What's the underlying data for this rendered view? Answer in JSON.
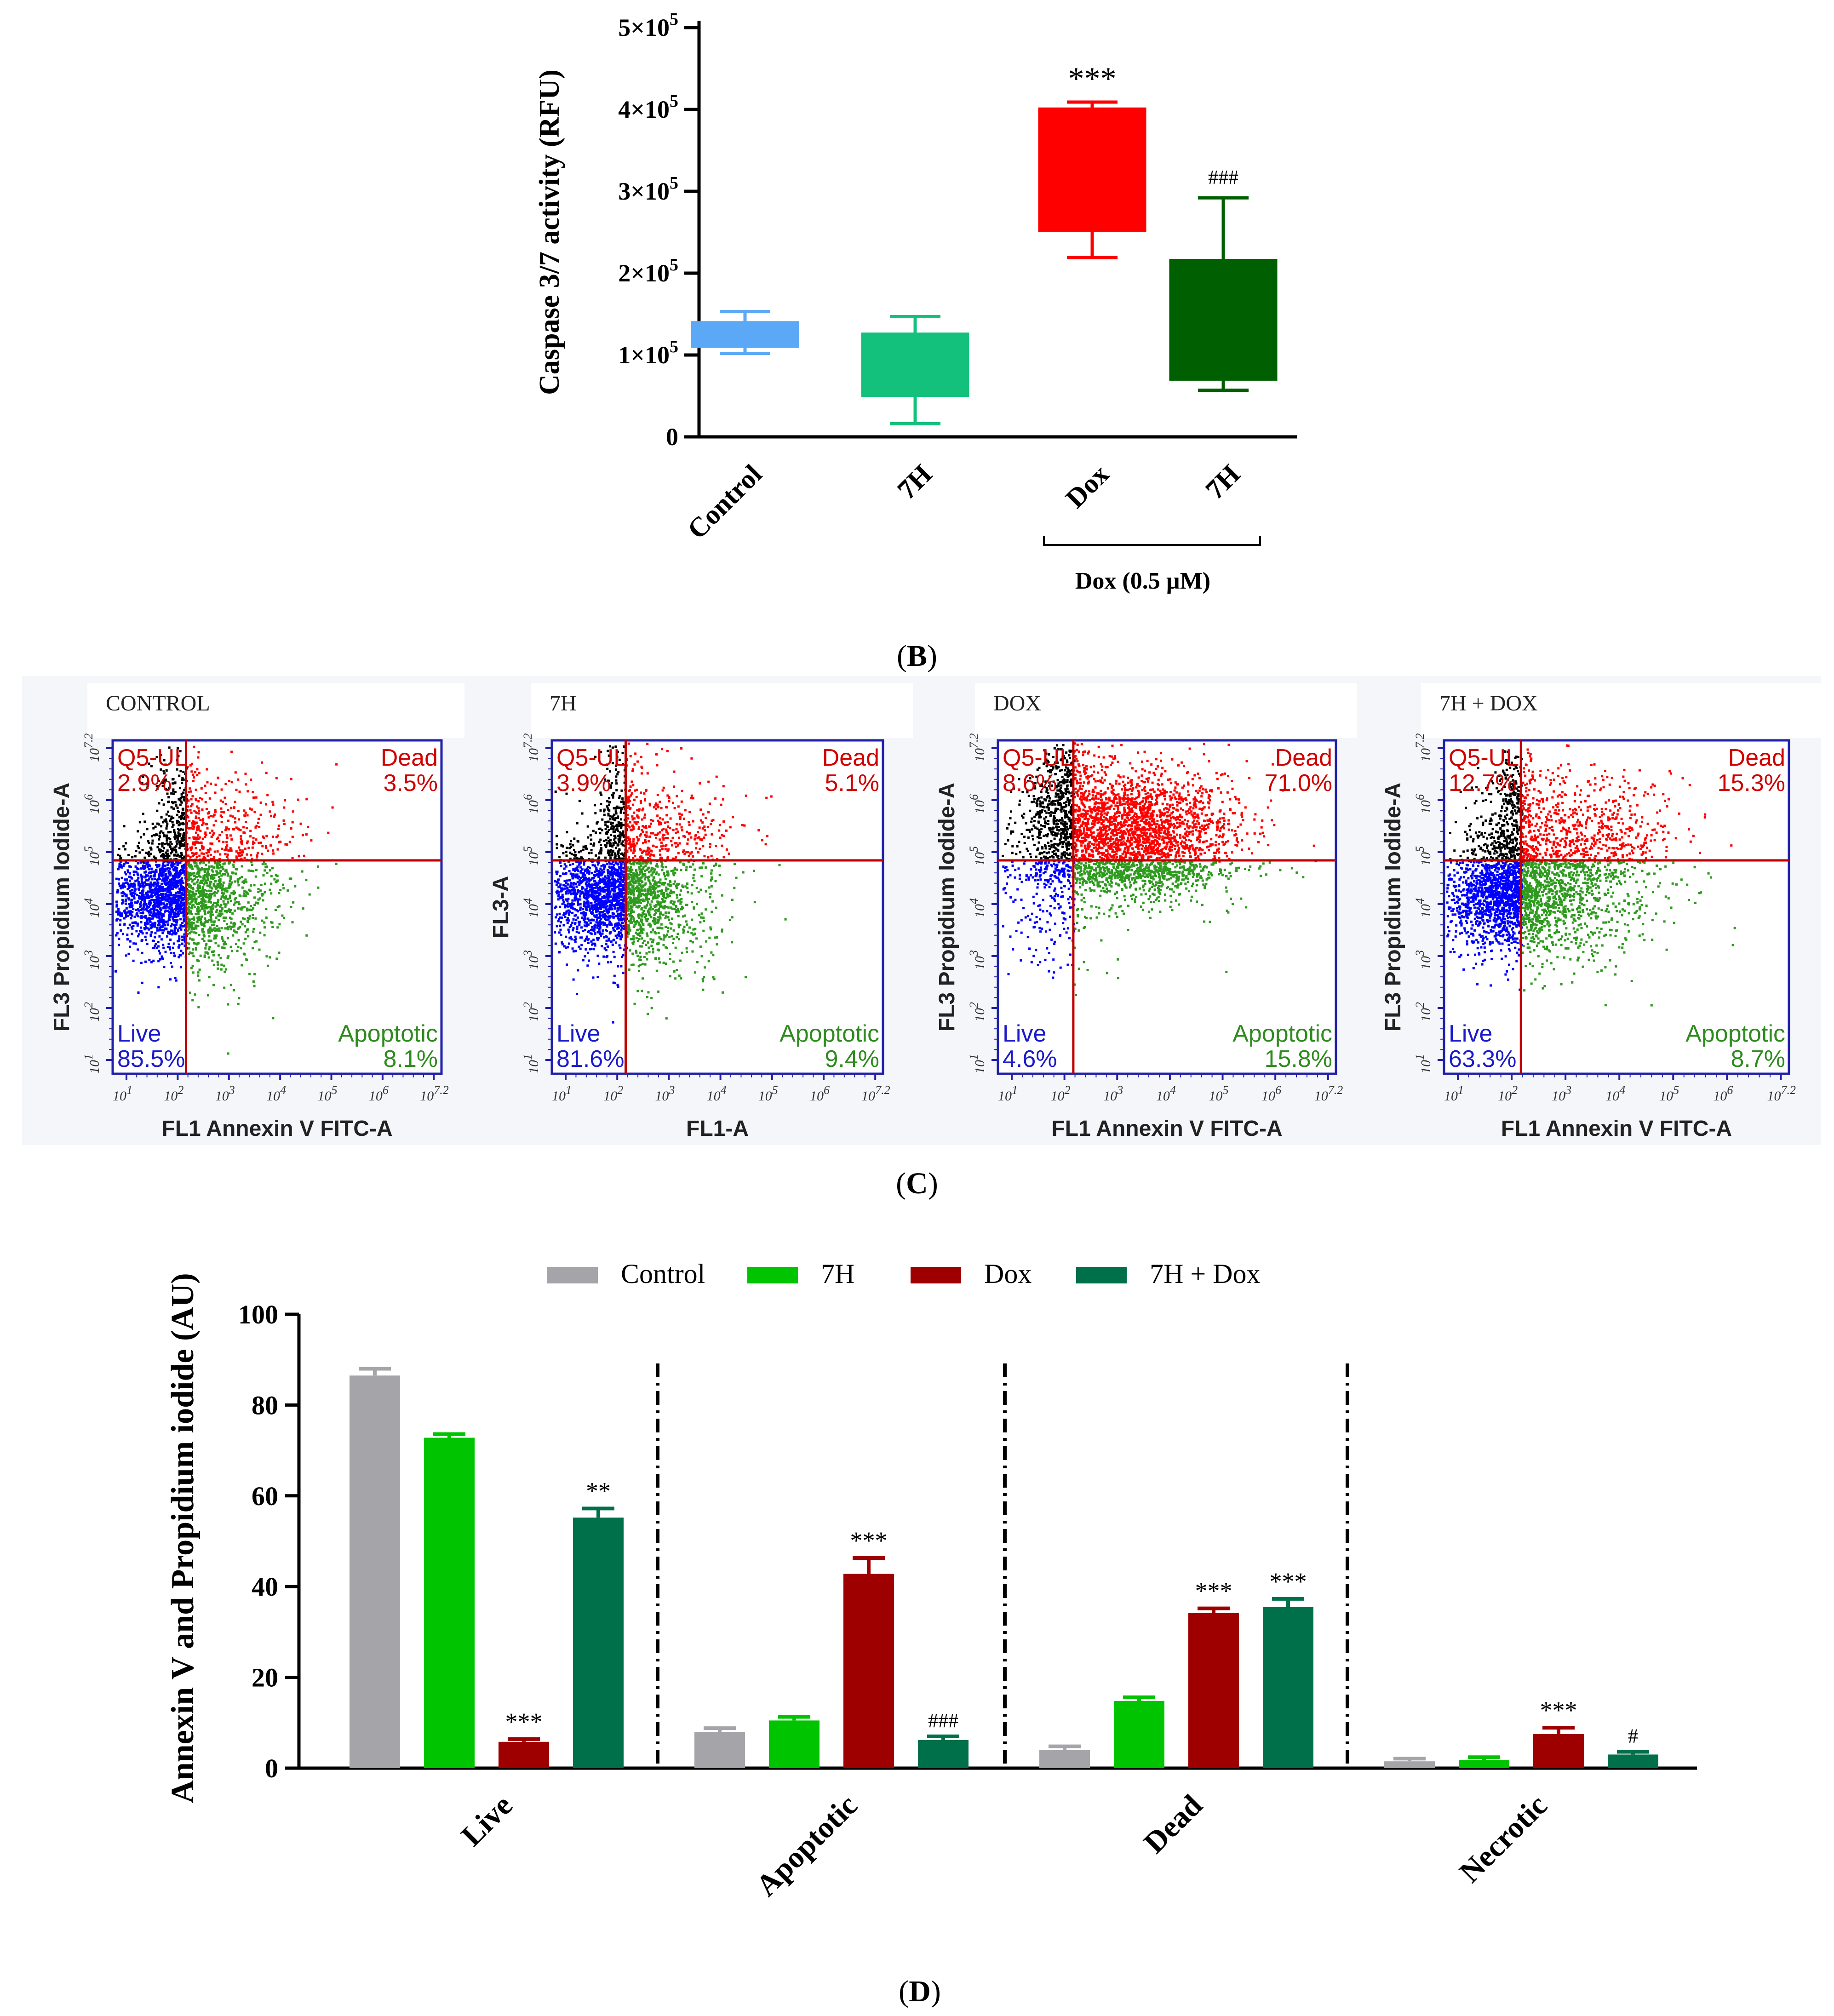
{
  "colors": {
    "control_box": "#5ba8f7",
    "h7_box": "#13c07c",
    "dox_box": "#ff0000",
    "combo_box": "#005f00",
    "bar_control": "#a5a5a9",
    "bar_7h": "#00c400",
    "bar_dox": "#9e0000",
    "bar_combo": "#00704a",
    "live_dots": "#0000ff",
    "dead_dots": "#ff0000",
    "apop_dots": "#2e9a1e",
    "ul_dots": "#000000",
    "quad_line": "#c00000",
    "quad_text_red": "#d00000",
    "quad_text_blue": "#1a1acc",
    "quad_text_green": "#2e8b1e",
    "axis_blue": "#2020aa"
  },
  "chart_data": [
    {
      "id": "B",
      "type": "box",
      "panel_label": "(B)",
      "panel_letter": "B",
      "title": "",
      "ylabel": "Caspase 3/7 activity (RFU)",
      "ylim": [
        0,
        500000
      ],
      "yticks": [
        {
          "value": 0,
          "label": "0"
        },
        {
          "value": 100000,
          "label": "1×10",
          "exp": "5"
        },
        {
          "value": 200000,
          "label": "2×10",
          "exp": "5"
        },
        {
          "value": 300000,
          "label": "3×10",
          "exp": "5"
        },
        {
          "value": 400000,
          "label": "4×10",
          "exp": "5"
        },
        {
          "value": 500000,
          "label": "5×10",
          "exp": "5"
        }
      ],
      "categories": [
        "Control",
        "7H",
        "Dox",
        "7H"
      ],
      "group_label": "Dox (0.5 µM)",
      "boxes": [
        {
          "name": "Control",
          "min": 102000,
          "q1": 110000,
          "q3": 140000,
          "max": 153000,
          "annotation": ""
        },
        {
          "name": "7H",
          "min": 16000,
          "q1": 50000,
          "q3": 126000,
          "max": 147000,
          "annotation": ""
        },
        {
          "name": "Dox",
          "min": 219000,
          "q1": 252000,
          "q3": 401000,
          "max": 409000,
          "annotation": "***"
        },
        {
          "name": "7H",
          "min": 57000,
          "q1": 70000,
          "q3": 216000,
          "max": 292000,
          "annotation": "###"
        }
      ]
    },
    {
      "id": "C",
      "type": "scatter",
      "panel_label": "(C)",
      "panel_letter": "C",
      "panels": [
        {
          "title": "CONTROL",
          "ylabel": "FL3 Propidium Iodide-A",
          "xlabel": "FL1 Annexin V FITC-A",
          "ul_name": "Q5-UL",
          "ul": "2.9%",
          "ur_name": "Dead",
          "ur": "3.5%",
          "ll_name": "Live",
          "ll": "85.5%",
          "lr_name": "Apoptotic",
          "lr": "8.1%"
        },
        {
          "title": "7H",
          "ylabel": "FL3-A",
          "xlabel": "FL1-A",
          "ul_name": "Q5-UL",
          "ul": "3.9%",
          "ur_name": "Dead",
          "ur": "5.1%",
          "ll_name": "Live",
          "ll": "81.6%",
          "lr_name": "Apoptotic",
          "lr": "9.4%"
        },
        {
          "title": "DOX",
          "ylabel": "FL3 Propidium Iodide-A",
          "xlabel": "FL1 Annexin V FITC-A",
          "ul_name": "Q5-UL",
          "ul": "8.6%",
          "ur_name": "Dead",
          "ur": "71.0%",
          "ll_name": "Live",
          "ll": "4.6%",
          "lr_name": "Apoptotic",
          "lr": "15.8%"
        },
        {
          "title": "7H + DOX",
          "ylabel": "FL3 Propidium Iodide-A",
          "xlabel": "FL1 Annexin V FITC-A",
          "ul_name": "Q5-UL",
          "ul": "12.7%",
          "ur_name": "Dead",
          "ur": "15.3%",
          "ll_name": "Live",
          "ll": "63.3%",
          "lr_name": "Apoptotic",
          "lr": "8.7%"
        }
      ],
      "axis_ticks": [
        "10^1",
        "10^2",
        "10^3",
        "10^4",
        "10^5",
        "10^6",
        "10^7.2"
      ]
    },
    {
      "id": "D",
      "type": "bar",
      "panel_label": "(D)",
      "panel_letter": "D",
      "title": "",
      "ylabel": "Annexin V and Propidium iodide (AU)",
      "xlabel": "",
      "ylim": [
        0,
        100
      ],
      "yticks": [
        0,
        20,
        40,
        60,
        80,
        100
      ],
      "categories": [
        "Live",
        "Apoptotic",
        "Dead",
        "Necrotic"
      ],
      "legend_position": "top",
      "series": [
        {
          "name": "Control",
          "values": [
            86.5,
            8.0,
            4.0,
            1.5
          ],
          "errors": [
            1.5,
            0.8,
            0.8,
            0.6
          ],
          "annotations": [
            "",
            "",
            "",
            ""
          ]
        },
        {
          "name": "7H",
          "values": [
            72.8,
            10.5,
            14.8,
            1.8
          ],
          "errors": [
            0.8,
            0.8,
            0.8,
            0.6
          ],
          "annotations": [
            "",
            "",
            "",
            ""
          ]
        },
        {
          "name": "Dox",
          "values": [
            5.8,
            42.8,
            34.2,
            7.5
          ],
          "errors": [
            0.6,
            3.5,
            1.0,
            1.4
          ],
          "annotations": [
            "***",
            "***",
            "***",
            "***"
          ]
        },
        {
          "name": "7H + Dox",
          "values": [
            55.2,
            6.2,
            35.5,
            3.0
          ],
          "errors": [
            2.0,
            0.8,
            1.8,
            0.6
          ],
          "annotations": [
            "**",
            "###",
            "***",
            "#"
          ]
        }
      ]
    }
  ]
}
